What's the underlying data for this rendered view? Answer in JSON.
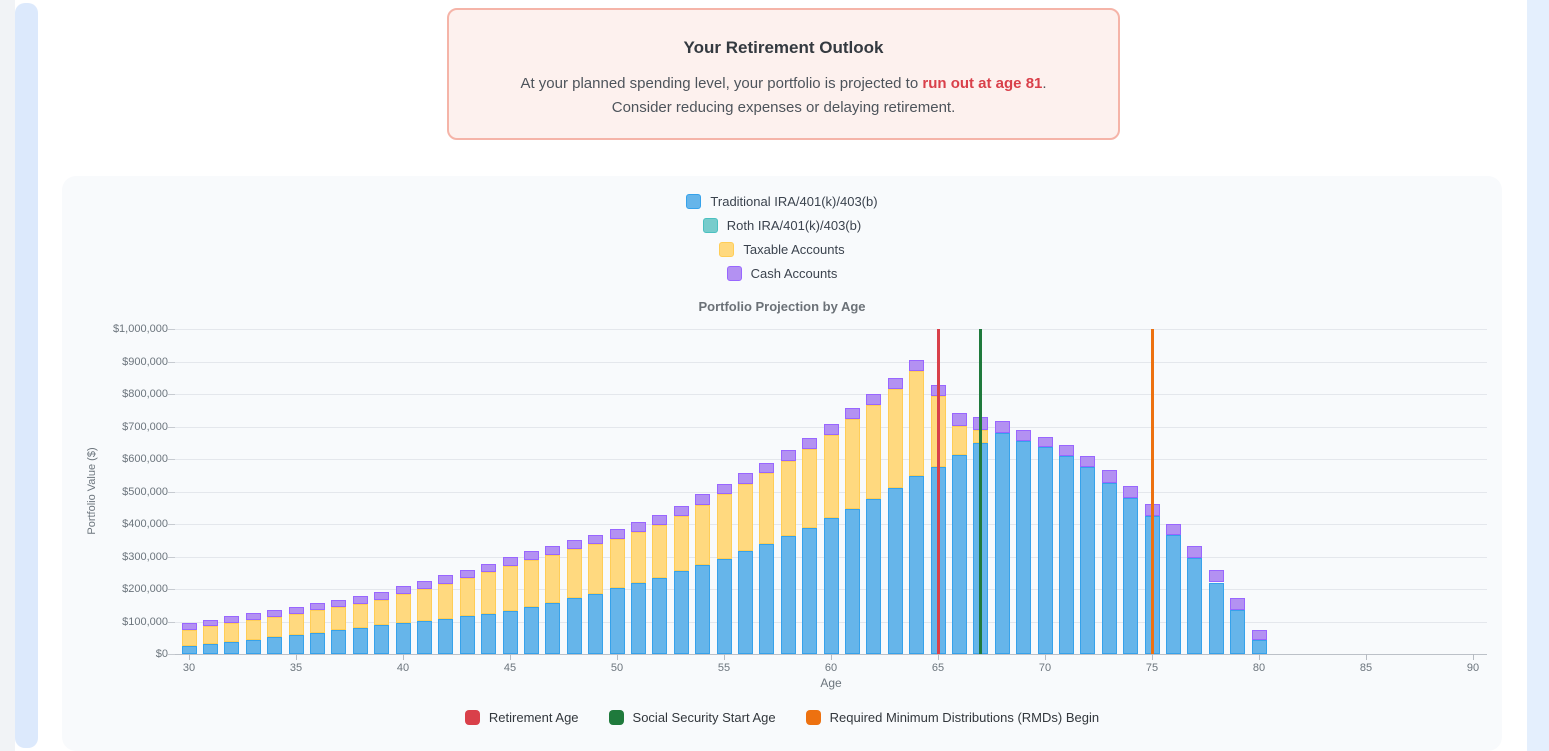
{
  "banner": {
    "title": "Your Retirement Outlook",
    "line1_prefix": "At your planned spending level, your portfolio is projected to ",
    "line1_highlight": "run out at age 81",
    "line1_suffix": ".",
    "line2": "Consider reducing expenses or delaying retirement.",
    "highlight_color": "#d9404a"
  },
  "chart_data": {
    "type": "bar",
    "stacked": true,
    "title": "Portfolio Projection by Age",
    "xlabel": "Age",
    "ylabel": "Portfolio Value ($)",
    "legend_position": "top-vertical",
    "grid": "horizontal-only",
    "x_axis": {
      "min": 30,
      "max": 90,
      "tick_step": 5,
      "tick_labels": [
        "30",
        "35",
        "40",
        "45",
        "50",
        "55",
        "60",
        "65",
        "70",
        "75",
        "80",
        "85",
        "90"
      ]
    },
    "y_axis": {
      "min": 0,
      "max": 1000000,
      "tick_step": 100000,
      "tick_labels": [
        "$0",
        "$100,000",
        "$200,000",
        "$300,000",
        "$400,000",
        "$500,000",
        "$600,000",
        "$700,000",
        "$800,000",
        "$900,000",
        "$1,000,000"
      ]
    },
    "ages": [
      30,
      31,
      32,
      33,
      34,
      35,
      36,
      37,
      38,
      39,
      40,
      41,
      42,
      43,
      44,
      45,
      46,
      47,
      48,
      49,
      50,
      51,
      52,
      53,
      54,
      55,
      56,
      57,
      58,
      59,
      60,
      61,
      62,
      63,
      64,
      65,
      66,
      67,
      68,
      69,
      70,
      71,
      72,
      73,
      74,
      75,
      76,
      77,
      78,
      79,
      80
    ],
    "series": [
      {
        "name": "Traditional IRA/401(k)/403(b)",
        "fill": "#66b5ea",
        "border": "#36a2eb",
        "values": [
          25000,
          31000,
          37000,
          44000,
          51000,
          58000,
          66000,
          73000,
          81000,
          90000,
          95000,
          102000,
          109000,
          116000,
          123000,
          131000,
          144000,
          157000,
          171000,
          186000,
          202000,
          218000,
          233000,
          255000,
          273000,
          293000,
          316000,
          339000,
          363000,
          389000,
          417000,
          445000,
          476000,
          512000,
          548000,
          575000,
          613000,
          650000,
          680000,
          655000,
          636000,
          609000,
          575000,
          527000,
          480000,
          426000,
          367000,
          295000,
          220000,
          136000,
          42000
        ]
      },
      {
        "name": "Roth IRA/401(k)/403(b)",
        "fill": "#77cccc",
        "border": "#4bc0c0",
        "values": [
          0,
          0,
          0,
          0,
          0,
          0,
          0,
          0,
          0,
          0,
          0,
          0,
          0,
          0,
          0,
          0,
          0,
          0,
          0,
          0,
          0,
          0,
          0,
          0,
          0,
          0,
          0,
          0,
          0,
          0,
          0,
          0,
          0,
          0,
          0,
          0,
          0,
          0,
          0,
          0,
          0,
          0,
          0,
          0,
          0,
          0,
          0,
          0,
          0,
          0,
          0
        ]
      },
      {
        "name": "Taxable Accounts",
        "fill": "#ffd97f",
        "border": "#ffcd56",
        "values": [
          50000,
          54000,
          58000,
          61000,
          63000,
          66000,
          68000,
          71000,
          74000,
          77000,
          90000,
          98000,
          107000,
          117000,
          128000,
          139000,
          144000,
          147000,
          151000,
          152000,
          152000,
          158000,
          165000,
          169000,
          186000,
          199000,
          207000,
          217000,
          231000,
          243000,
          258000,
          277000,
          290000,
          303000,
          324000,
          219000,
          90000,
          38000,
          0,
          0,
          0,
          0,
          0,
          0,
          0,
          0,
          0,
          0,
          0,
          0,
          0
        ]
      },
      {
        "name": "Cash Accounts",
        "fill": "#b391f2",
        "border": "#9966ff",
        "values": [
          20000,
          20000,
          21000,
          21000,
          22000,
          22000,
          23000,
          23000,
          24000,
          24000,
          25000,
          25000,
          26000,
          26000,
          27000,
          27000,
          28000,
          28000,
          29000,
          29000,
          30000,
          30000,
          31000,
          31000,
          32000,
          32000,
          33000,
          33000,
          34000,
          34000,
          34000,
          34000,
          34000,
          33000,
          33000,
          34000,
          39000,
          41000,
          36000,
          35000,
          33000,
          34000,
          35000,
          39000,
          38000,
          36000,
          34000,
          36000,
          37000,
          35000,
          33000
        ]
      }
    ],
    "annotations": [
      {
        "label": "Retirement Age",
        "age": 65,
        "color": "#d9404a"
      },
      {
        "label": "Social Security Start Age",
        "age": 67,
        "color": "#1f7a3c"
      },
      {
        "label": "Required Minimum Distributions (RMDs) Begin",
        "age": 75,
        "color": "#ed7110"
      }
    ]
  }
}
